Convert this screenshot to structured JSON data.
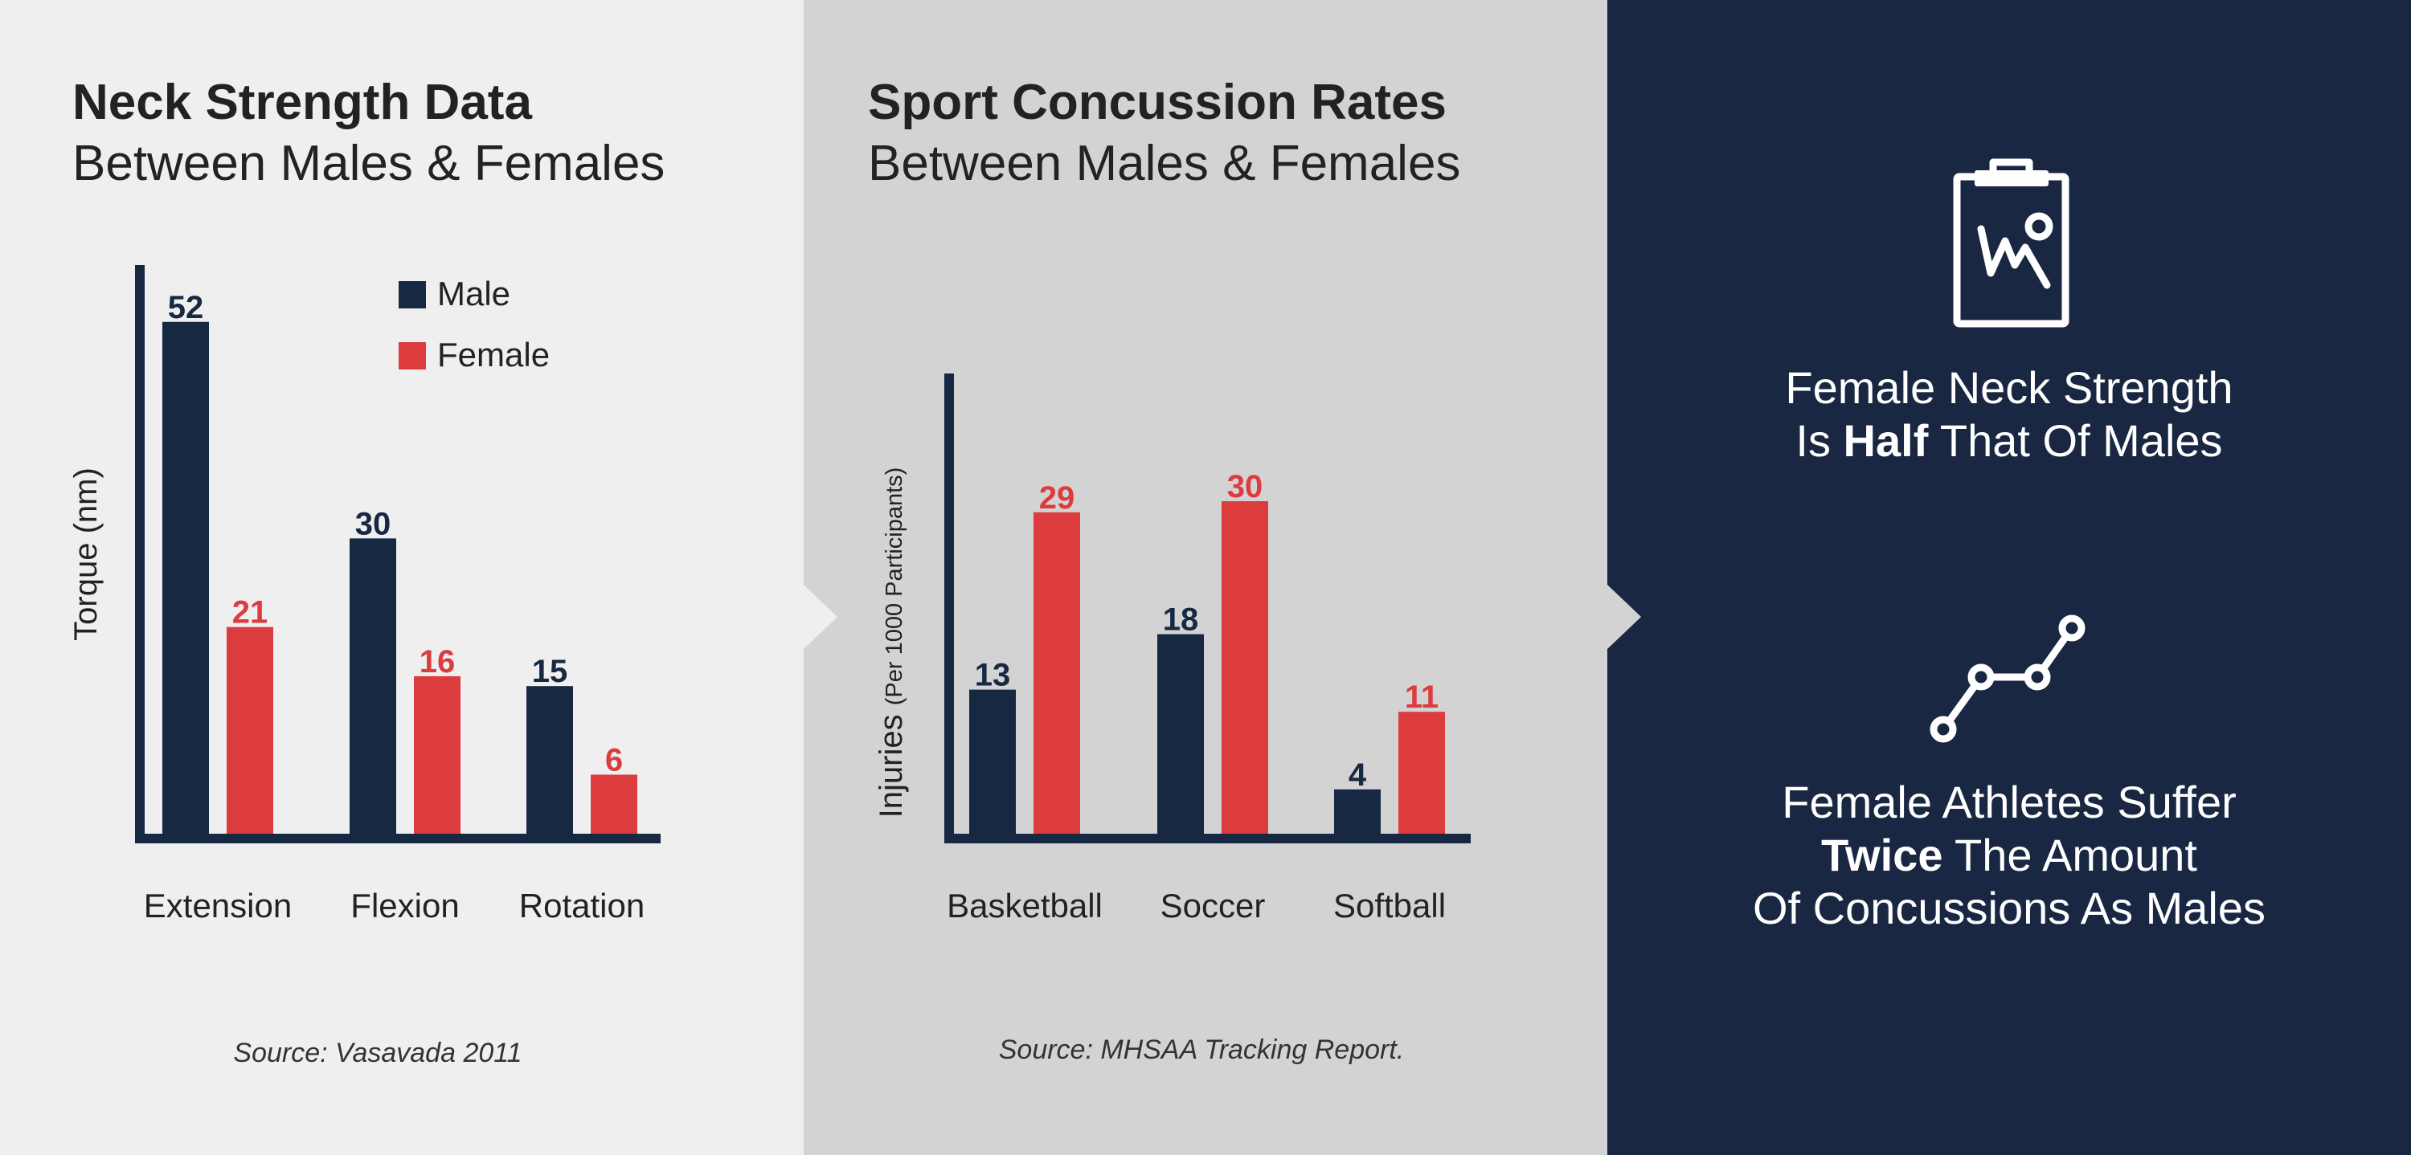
{
  "colors": {
    "navy": "#172843",
    "red": "#dc3c3e",
    "panel1_bg": "#efefef",
    "panel2_bg": "#d3d3d3",
    "panel3_bg": "#1a2742",
    "ink": "#222222",
    "white": "#ffffff"
  },
  "panels": [
    {
      "title": "Neck Strength Data",
      "subtitle": "Between Males & Females",
      "source": "Source: Vasavada 2011"
    },
    {
      "title": "Sport Concussion Rates",
      "subtitle": "Between Males & Females",
      "source": "Source: MHSAA Tracking Report."
    }
  ],
  "stats": [
    {
      "icon": "clipboard-chart-icon",
      "line1": "Female Neck Strength",
      "line2_before": "Is ",
      "line2_bold": "Half",
      "line2_after": " That Of Males"
    },
    {
      "icon": "line-graph-icon",
      "line1": "Female Athletes Suffer",
      "line2_bold": "Twice",
      "line2_after": " The Amount",
      "line3": "Of Concussions As Males"
    }
  ],
  "chart_data": [
    {
      "type": "bar",
      "categories": [
        "Extension",
        "Flexion",
        "Rotation"
      ],
      "series": [
        {
          "name": "Male",
          "color": "#172843",
          "values": [
            52,
            30,
            15
          ]
        },
        {
          "name": "Female",
          "color": "#dc3c3e",
          "values": [
            21,
            16,
            6
          ]
        }
      ],
      "ylabel": "Torque (nm)",
      "ylim": [
        0,
        55
      ],
      "legend": "top-right",
      "grid": false
    },
    {
      "type": "bar",
      "categories": [
        "Basketball",
        "Soccer",
        "Softball"
      ],
      "series": [
        {
          "color": "#172843",
          "values": [
            13,
            18,
            4
          ]
        },
        {
          "color": "#dc3c3e",
          "values": [
            29,
            30,
            11
          ]
        }
      ],
      "ylabel_main": "Injuries",
      "ylabel_sub": "(Per 1000 Participants)",
      "ylim": [
        0,
        45
      ],
      "grid": false
    }
  ]
}
